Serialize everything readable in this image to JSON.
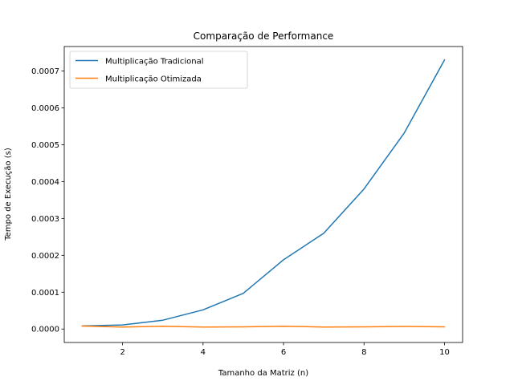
{
  "chart_data": {
    "type": "line",
    "title": "Comparação de Performance",
    "xlabel": "Tamanho da Matriz (n)",
    "ylabel": "Tempo de Execução (s)",
    "x": [
      1,
      2,
      3,
      4,
      5,
      6,
      7,
      8,
      9,
      10
    ],
    "xlim": [
      0.55,
      10.45
    ],
    "ylim": [
      -3.65e-05,
      0.0007665
    ],
    "xticks": [
      2,
      4,
      6,
      8,
      10
    ],
    "yticks": [
      0,
      0.0001,
      0.0002,
      0.0003,
      0.0004,
      0.0005,
      0.0006,
      0.0007
    ],
    "grid": false,
    "legend_position": "top-left",
    "series": [
      {
        "name": "Multiplicação Tradicional",
        "color": "#1f77b4",
        "values": [
          8.5e-06,
          1.1e-05,
          2.4e-05,
          5.2e-05,
          9.7e-05,
          0.000188,
          0.00026,
          0.00038,
          0.000532,
          0.00073
        ]
      },
      {
        "name": "Multiplicação Otimizada",
        "color": "#ff7f0e",
        "values": [
          8e-06,
          5.5e-06,
          7.5e-06,
          5.5e-06,
          6e-06,
          7.5e-06,
          5.5e-06,
          6e-06,
          7e-06,
          6e-06
        ]
      }
    ]
  }
}
